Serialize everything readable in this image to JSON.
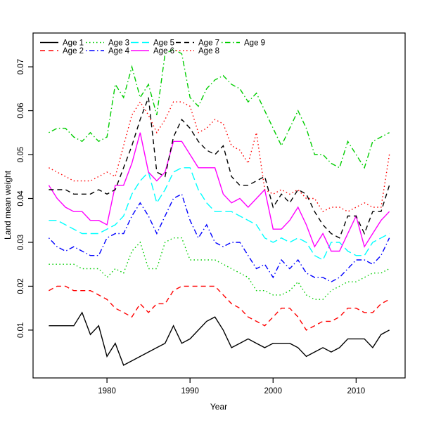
{
  "figure": {
    "background": "#ffffff"
  },
  "axes": {
    "x": {
      "label": "Year",
      "ticks": [
        1980,
        1990,
        2000,
        2010
      ],
      "lim": [
        1971.1,
        2015.9
      ]
    },
    "y": {
      "label": "Land mean weight",
      "ticks": [
        0.01,
        0.02,
        0.03,
        0.04,
        0.05,
        0.06,
        0.07
      ],
      "lim": [
        -0.0009,
        0.0777
      ],
      "decimals": 2
    },
    "box": true,
    "grid": false
  },
  "legend": {
    "position": "top-left-inside",
    "columns": 5,
    "rows": 2,
    "entries": [
      "Age 1",
      "Age 2",
      "Age 3",
      "Age 4",
      "Age 5",
      "Age 6",
      "Age 7",
      "Age 8",
      "Age 9"
    ]
  },
  "chart_data": {
    "type": "line",
    "title": "",
    "xlabel": "Year",
    "ylabel": "Land mean weight",
    "grid": false,
    "legend_position": "top-left",
    "xlim": [
      1971.1,
      2015.9
    ],
    "ylim": [
      -0.0009,
      0.0777
    ],
    "x": [
      1973,
      1974,
      1975,
      1976,
      1977,
      1978,
      1979,
      1980,
      1981,
      1982,
      1983,
      1984,
      1985,
      1986,
      1987,
      1988,
      1989,
      1990,
      1991,
      1992,
      1993,
      1994,
      1995,
      1996,
      1997,
      1998,
      1999,
      2000,
      2001,
      2002,
      2003,
      2004,
      2005,
      2006,
      2007,
      2008,
      2009,
      2010,
      2011,
      2012,
      2013,
      2014
    ],
    "series": [
      {
        "name": "Age 1",
        "color": "#000000",
        "linestyle": "solid",
        "values": [
          0.011,
          0.011,
          0.011,
          0.011,
          0.014,
          0.009,
          0.011,
          0.004,
          0.007,
          0.002,
          0.003,
          0.004,
          0.005,
          0.006,
          0.007,
          0.011,
          0.007,
          0.008,
          0.01,
          0.012,
          0.013,
          0.01,
          0.006,
          0.007,
          0.008,
          0.007,
          0.006,
          0.007,
          0.007,
          0.007,
          0.006,
          0.004,
          0.005,
          0.006,
          0.005,
          0.006,
          0.008,
          0.008,
          0.008,
          0.006,
          0.009,
          0.01
        ]
      },
      {
        "name": "Age 2",
        "color": "#FF0000",
        "linestyle": "dashed",
        "values": [
          0.019,
          0.02,
          0.02,
          0.019,
          0.019,
          0.019,
          0.018,
          0.017,
          0.015,
          0.014,
          0.013,
          0.016,
          0.014,
          0.016,
          0.016,
          0.019,
          0.02,
          0.02,
          0.02,
          0.02,
          0.02,
          0.018,
          0.016,
          0.015,
          0.013,
          0.012,
          0.011,
          0.013,
          0.015,
          0.015,
          0.013,
          0.01,
          0.011,
          0.012,
          0.012,
          0.013,
          0.015,
          0.015,
          0.014,
          0.014,
          0.016,
          0.017
        ]
      },
      {
        "name": "Age 3",
        "color": "#00CD00",
        "linestyle": "dotted",
        "values": [
          0.025,
          0.025,
          0.025,
          0.025,
          0.024,
          0.024,
          0.024,
          0.022,
          0.024,
          0.023,
          0.028,
          0.03,
          0.024,
          0.024,
          0.03,
          0.031,
          0.031,
          0.026,
          0.026,
          0.026,
          0.026,
          0.025,
          0.024,
          0.023,
          0.022,
          0.019,
          0.019,
          0.018,
          0.018,
          0.019,
          0.021,
          0.018,
          0.017,
          0.017,
          0.019,
          0.02,
          0.021,
          0.021,
          0.022,
          0.023,
          0.023,
          0.024
        ]
      },
      {
        "name": "Age 4",
        "color": "#0000FF",
        "linestyle": "dashdot",
        "values": [
          0.031,
          0.029,
          0.028,
          0.029,
          0.028,
          0.027,
          0.027,
          0.031,
          0.032,
          0.032,
          0.036,
          0.039,
          0.036,
          0.032,
          0.036,
          0.04,
          0.041,
          0.035,
          0.031,
          0.034,
          0.03,
          0.029,
          0.03,
          0.03,
          0.027,
          0.024,
          0.025,
          0.022,
          0.026,
          0.024,
          0.026,
          0.023,
          0.022,
          0.022,
          0.021,
          0.022,
          0.024,
          0.026,
          0.026,
          0.025,
          0.027,
          0.031
        ]
      },
      {
        "name": "Age 5",
        "color": "#00FFFF",
        "linestyle": "longdash",
        "values": [
          0.035,
          0.035,
          0.034,
          0.033,
          0.032,
          0.032,
          0.032,
          0.033,
          0.034,
          0.036,
          0.041,
          0.044,
          0.046,
          0.039,
          0.042,
          0.046,
          0.047,
          0.047,
          0.042,
          0.039,
          0.037,
          0.037,
          0.037,
          0.036,
          0.035,
          0.034,
          0.031,
          0.03,
          0.031,
          0.03,
          0.031,
          0.03,
          0.027,
          0.026,
          0.03,
          0.03,
          0.028,
          0.027,
          0.027,
          0.03,
          0.031,
          0.032
        ]
      },
      {
        "name": "Age 6",
        "color": "#FF00FF",
        "linestyle": "solid",
        "values": [
          0.043,
          0.04,
          0.038,
          0.037,
          0.037,
          0.035,
          0.035,
          0.034,
          0.043,
          0.043,
          0.048,
          0.055,
          0.046,
          0.044,
          0.046,
          0.053,
          0.053,
          0.05,
          0.047,
          0.047,
          0.047,
          0.041,
          0.039,
          0.04,
          0.038,
          0.04,
          0.042,
          0.033,
          0.033,
          0.035,
          0.038,
          0.034,
          0.029,
          0.032,
          0.028,
          0.028,
          0.032,
          0.036,
          0.029,
          0.032,
          0.035,
          0.037
        ]
      },
      {
        "name": "Age 7",
        "color": "#000000",
        "linestyle": "dashed",
        "values": [
          0.042,
          0.042,
          0.042,
          0.041,
          0.041,
          0.041,
          0.042,
          0.041,
          0.042,
          0.047,
          0.052,
          0.058,
          0.063,
          0.046,
          0.045,
          0.054,
          0.058,
          0.056,
          0.053,
          0.051,
          0.05,
          0.052,
          0.045,
          0.043,
          0.043,
          0.044,
          0.045,
          0.038,
          0.041,
          0.039,
          0.042,
          0.041,
          0.037,
          0.034,
          0.032,
          0.031,
          0.036,
          0.036,
          0.032,
          0.037,
          0.037,
          0.043
        ]
      },
      {
        "name": "Age 8",
        "color": "#FF0000",
        "linestyle": "dotted",
        "values": [
          0.047,
          0.046,
          0.045,
          0.044,
          0.044,
          0.044,
          0.045,
          0.046,
          0.045,
          0.052,
          0.059,
          0.062,
          0.059,
          0.055,
          0.058,
          0.062,
          0.062,
          0.061,
          0.055,
          0.056,
          0.058,
          0.057,
          0.052,
          0.051,
          0.048,
          0.055,
          0.042,
          0.041,
          0.042,
          0.041,
          0.042,
          0.04,
          0.04,
          0.037,
          0.038,
          0.038,
          0.037,
          0.038,
          0.039,
          0.038,
          0.038,
          0.05
        ]
      },
      {
        "name": "Age 9",
        "color": "#00CD00",
        "linestyle": "dashdot",
        "values": [
          0.055,
          0.056,
          0.056,
          0.054,
          0.053,
          0.055,
          0.053,
          0.054,
          0.066,
          0.063,
          0.07,
          0.063,
          0.066,
          0.059,
          0.073,
          0.074,
          0.073,
          0.063,
          0.061,
          0.065,
          0.067,
          0.068,
          0.066,
          0.065,
          0.062,
          0.064,
          0.06,
          0.056,
          0.052,
          0.056,
          0.06,
          0.056,
          0.05,
          0.05,
          0.048,
          0.047,
          0.053,
          0.05,
          0.047,
          0.053,
          0.054,
          0.055
        ]
      }
    ]
  }
}
